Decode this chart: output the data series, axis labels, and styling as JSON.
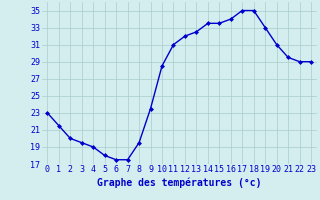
{
  "hours": [
    0,
    1,
    2,
    3,
    4,
    5,
    6,
    7,
    8,
    9,
    10,
    11,
    12,
    13,
    14,
    15,
    16,
    17,
    18,
    19,
    20,
    21,
    22,
    23
  ],
  "temperatures": [
    23,
    21.5,
    20,
    19.5,
    19,
    18,
    17.5,
    17.5,
    19.5,
    23.5,
    28.5,
    31,
    32,
    32.5,
    33.5,
    33.5,
    34,
    35,
    35,
    33,
    31,
    29.5,
    29,
    29
  ],
  "line_color": "#0000cc",
  "marker": "D",
  "marker_size": 2.0,
  "bg_color": "#d4eef0",
  "grid_color": "#aacccc",
  "xlabel": "Graphe des températures (°c)",
  "xlabel_color": "#0000cc",
  "xlabel_fontsize": 7,
  "tick_color": "#0000cc",
  "tick_fontsize": 6,
  "ylim": [
    17,
    36
  ],
  "yticks": [
    17,
    19,
    21,
    23,
    25,
    27,
    29,
    31,
    33,
    35
  ],
  "xlim": [
    -0.5,
    23.5
  ],
  "linewidth": 1.0
}
